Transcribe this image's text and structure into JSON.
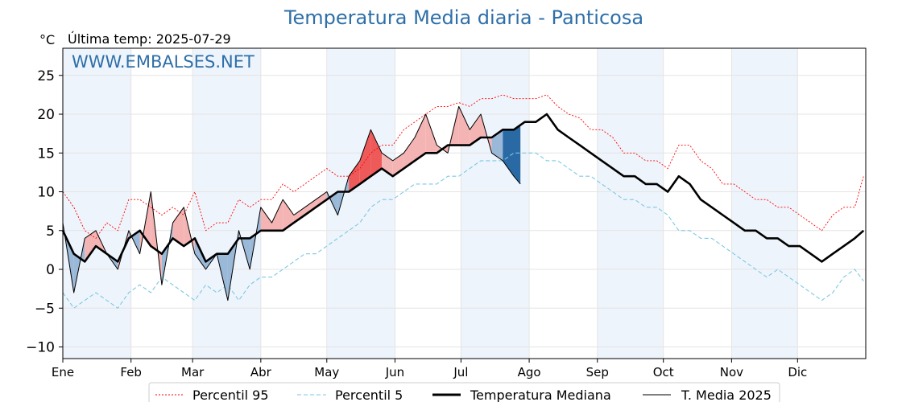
{
  "header": {
    "title": "Temperatura Media diaria - Panticosa",
    "unit": "°C",
    "last_temp": "Última temp: 2025-07-29"
  },
  "watermark": "WWW.EMBALSES.NET",
  "colors": {
    "p95": "#ff0000",
    "p5": "#7ec8e3",
    "median": "#000000",
    "current": "#000000",
    "above_fill": "#f4b4b4",
    "above_fill_strong": "#ee5a5a",
    "below_fill": "#9ab9d8",
    "below_fill_strong": "#2a6aa4",
    "month_band": "#eef4fb",
    "title": "#2e6fa8"
  },
  "chart_data": {
    "type": "line",
    "xlabel": "",
    "ylabel": "°C",
    "ylim": [
      -11.5,
      28.5
    ],
    "yticks": [
      -10,
      -5,
      0,
      5,
      10,
      15,
      20,
      25
    ],
    "xlim": [
      0,
      365
    ],
    "month_labels": [
      "Ene",
      "Feb",
      "Mar",
      "Abr",
      "May",
      "Jun",
      "Jul",
      "Ago",
      "Sep",
      "Oct",
      "Nov",
      "Dic"
    ],
    "grid": true,
    "legend_position": "bottom",
    "series": [
      {
        "name": "Percentil 95",
        "style": "dotted",
        "x": [
          0,
          5,
          10,
          15,
          20,
          25,
          30,
          35,
          40,
          45,
          50,
          55,
          60,
          65,
          70,
          75,
          80,
          85,
          90,
          95,
          100,
          105,
          110,
          115,
          120,
          125,
          130,
          135,
          140,
          145,
          150,
          155,
          160,
          165,
          170,
          175,
          180,
          185,
          190,
          195,
          200,
          205,
          210,
          215,
          220,
          225,
          230,
          235,
          240,
          245,
          250,
          255,
          260,
          265,
          270,
          275,
          280,
          285,
          290,
          295,
          300,
          305,
          310,
          315,
          320,
          325,
          330,
          335,
          340,
          345,
          350,
          355,
          360,
          364
        ],
        "values": [
          10,
          8,
          5,
          4,
          6,
          5,
          9,
          9,
          8,
          7,
          8,
          7,
          10,
          5,
          6,
          6,
          9,
          8,
          9,
          9,
          11,
          10,
          11,
          12,
          13,
          12,
          12,
          13,
          15,
          16,
          16,
          18,
          19,
          20,
          21,
          21,
          21.5,
          21,
          22,
          22,
          22.5,
          22,
          22,
          22,
          22.5,
          21,
          20,
          19.5,
          18,
          18,
          17,
          15,
          15,
          14,
          14,
          13,
          16,
          16,
          14,
          13,
          11,
          11,
          10,
          9,
          9,
          8,
          8,
          7,
          6,
          5,
          7,
          8,
          8,
          12
        ]
      },
      {
        "name": "Percentil 5",
        "style": "dashed",
        "x": [
          0,
          5,
          10,
          15,
          20,
          25,
          30,
          35,
          40,
          45,
          50,
          55,
          60,
          65,
          70,
          75,
          80,
          85,
          90,
          95,
          100,
          105,
          110,
          115,
          120,
          125,
          130,
          135,
          140,
          145,
          150,
          155,
          160,
          165,
          170,
          175,
          180,
          185,
          190,
          195,
          200,
          205,
          210,
          215,
          220,
          225,
          230,
          235,
          240,
          245,
          250,
          255,
          260,
          265,
          270,
          275,
          280,
          285,
          290,
          295,
          300,
          305,
          310,
          315,
          320,
          325,
          330,
          335,
          340,
          345,
          350,
          355,
          360,
          364
        ],
        "values": [
          -3,
          -5,
          -4,
          -3,
          -4,
          -5,
          -3,
          -2,
          -3,
          -1,
          -2,
          -3,
          -4,
          -2,
          -3,
          -2,
          -4,
          -2,
          -1,
          -1,
          0,
          1,
          2,
          2,
          3,
          4,
          5,
          6,
          8,
          9,
          9,
          10,
          11,
          11,
          11,
          12,
          12,
          13,
          14,
          14,
          14,
          15,
          15,
          15,
          14,
          14,
          13,
          12,
          12,
          11,
          10,
          9,
          9,
          8,
          8,
          7,
          5,
          5,
          4,
          4,
          3,
          2,
          1,
          0,
          -1,
          0,
          -1,
          -2,
          -3,
          -4,
          -3,
          -1,
          0,
          -1.5
        ]
      },
      {
        "name": "Temperatura Mediana",
        "style": "thick",
        "x": [
          0,
          5,
          10,
          15,
          20,
          25,
          30,
          35,
          40,
          45,
          50,
          55,
          60,
          65,
          70,
          75,
          80,
          85,
          90,
          95,
          100,
          105,
          110,
          115,
          120,
          125,
          130,
          135,
          140,
          145,
          150,
          155,
          160,
          165,
          170,
          175,
          180,
          185,
          190,
          195,
          200,
          205,
          210,
          215,
          220,
          225,
          230,
          235,
          240,
          245,
          250,
          255,
          260,
          265,
          270,
          275,
          280,
          285,
          290,
          295,
          300,
          305,
          310,
          315,
          320,
          325,
          330,
          335,
          340,
          345,
          350,
          355,
          360,
          364
        ],
        "values": [
          5,
          2,
          1,
          3,
          2,
          1,
          4,
          5,
          3,
          2,
          4,
          3,
          4,
          1,
          2,
          2,
          4,
          4,
          5,
          5,
          5,
          6,
          7,
          8,
          9,
          10,
          10,
          11,
          12,
          13,
          12,
          13,
          14,
          15,
          15,
          16,
          16,
          16,
          17,
          17,
          18,
          18,
          19,
          19,
          20,
          18,
          17,
          16,
          15,
          14,
          13,
          12,
          12,
          11,
          11,
          10,
          12,
          11,
          9,
          8,
          7,
          6,
          5,
          5,
          4,
          4,
          3,
          3,
          2,
          1,
          2,
          3,
          4,
          5
        ]
      },
      {
        "name": "T. Media 2025",
        "style": "thin",
        "x": [
          0,
          5,
          10,
          15,
          20,
          25,
          30,
          35,
          40,
          45,
          50,
          55,
          60,
          65,
          70,
          75,
          80,
          85,
          90,
          95,
          100,
          105,
          110,
          115,
          120,
          125,
          130,
          135,
          140,
          145,
          150,
          155,
          160,
          165,
          170,
          175,
          180,
          185,
          190,
          195,
          200,
          205,
          208
        ],
        "values": [
          6,
          -3,
          4,
          5,
          2,
          0,
          5,
          2,
          10,
          -2,
          6,
          8,
          2,
          0,
          2,
          -4,
          5,
          0,
          8,
          6,
          9,
          7,
          8,
          9,
          10,
          7,
          12,
          14,
          18,
          15,
          14,
          15,
          17,
          20,
          16,
          15,
          21,
          18,
          20,
          15,
          14,
          12,
          11
        ]
      }
    ]
  },
  "legend": {
    "p95": "Percentil 95",
    "p5": "Percentil 5",
    "median": "Temperatura Mediana",
    "current": "T. Media 2025"
  }
}
